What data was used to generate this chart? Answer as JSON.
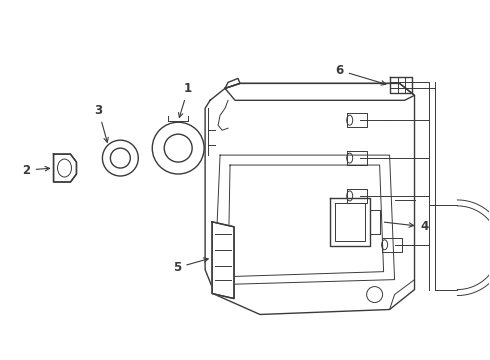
{
  "background_color": "#ffffff",
  "line_color": "#3a3a3a",
  "label_color": "#000000",
  "fig_width": 4.9,
  "fig_height": 3.6,
  "dpi": 100
}
